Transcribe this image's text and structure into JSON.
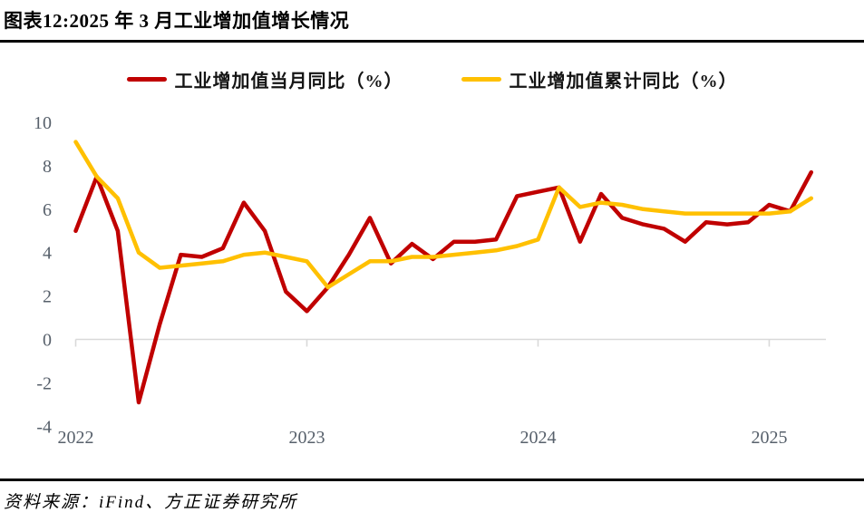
{
  "header": {
    "title": "图表12:2025 年 3 月工业增加值增长情况"
  },
  "legend": [
    {
      "label": "工业增加值当月同比（%）",
      "color": "#C00000"
    },
    {
      "label": "工业增加值累计同比（%）",
      "color": "#FFC000"
    }
  ],
  "footer": {
    "source": "资料来源：iFind、方正证券研究所"
  },
  "chart_data": {
    "type": "line",
    "title": "2025 年 3 月工业增加值增长情况",
    "xlabel": "",
    "ylabel": "",
    "grid": false,
    "legend_position": "top",
    "axis_color": "#d9d9d9",
    "label_color": "#57606b",
    "ylim": [
      -4,
      10
    ],
    "y_ticks": [
      10,
      8,
      6,
      4,
      2,
      0,
      -2,
      -4
    ],
    "x_tick_labels": [
      "2022",
      "2023",
      "2024",
      "2025"
    ],
    "x_tick_indices": [
      0,
      11,
      22,
      33
    ],
    "categories": [
      "2021-12",
      "2022-02",
      "2022-03",
      "2022-04",
      "2022-05",
      "2022-06",
      "2022-07",
      "2022-08",
      "2022-09",
      "2022-10",
      "2022-11",
      "2022-12",
      "2023-02",
      "2023-03",
      "2023-04",
      "2023-05",
      "2023-06",
      "2023-07",
      "2023-08",
      "2023-09",
      "2023-10",
      "2023-11",
      "2023-12",
      "2024-02",
      "2024-03",
      "2024-04",
      "2024-05",
      "2024-06",
      "2024-07",
      "2024-08",
      "2024-09",
      "2024-10",
      "2024-11",
      "2024-12",
      "2025-02",
      "2025-03"
    ],
    "series": [
      {
        "name": "工业增加值当月同比（%）",
        "color": "#C00000",
        "values": [
          5.0,
          7.5,
          5.0,
          -2.9,
          0.7,
          3.9,
          3.8,
          4.2,
          6.3,
          5.0,
          2.2,
          1.3,
          2.4,
          3.9,
          5.6,
          3.5,
          4.4,
          3.7,
          4.5,
          4.5,
          4.6,
          6.6,
          6.8,
          7.0,
          4.5,
          6.7,
          5.6,
          5.3,
          5.1,
          4.5,
          5.4,
          5.3,
          5.4,
          6.2,
          5.9,
          7.7
        ]
      },
      {
        "name": "工业增加值累计同比（%）",
        "color": "#FFC000",
        "values": [
          9.1,
          7.5,
          6.5,
          4.0,
          3.3,
          3.4,
          3.5,
          3.6,
          3.9,
          4.0,
          3.8,
          3.6,
          2.4,
          3.0,
          3.6,
          3.6,
          3.8,
          3.8,
          3.9,
          4.0,
          4.1,
          4.3,
          4.6,
          7.0,
          6.1,
          6.3,
          6.2,
          6.0,
          5.9,
          5.8,
          5.8,
          5.8,
          5.8,
          5.8,
          5.9,
          6.5
        ]
      }
    ]
  }
}
